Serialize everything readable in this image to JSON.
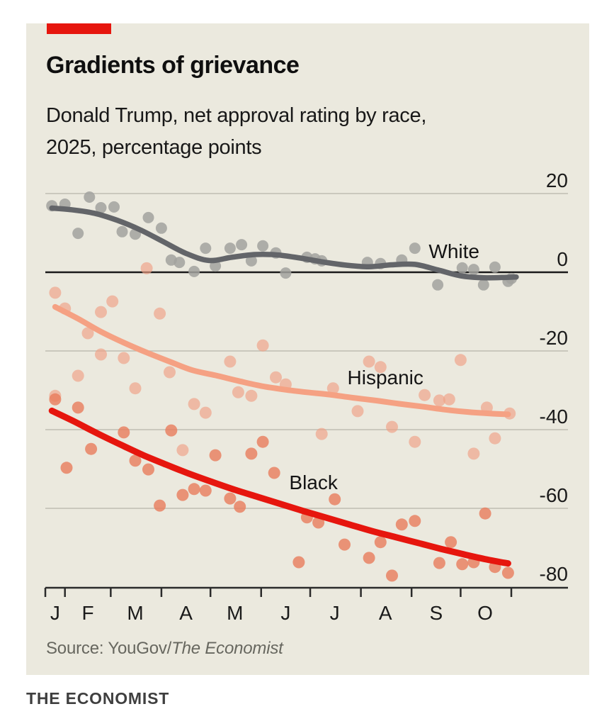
{
  "header": {
    "title": "Gradients of grievance",
    "subtitle_lines": [
      "Donald Trump, net approval rating by race,",
      "2025, percentage points"
    ]
  },
  "source": {
    "prefix": "Source: YouGov/",
    "publication": "The Economist"
  },
  "footer": {
    "brand": "THE ECONOMIST"
  },
  "colors": {
    "page_background": "#ffffff",
    "panel_background": "#ebe9de",
    "brand_red": "#e6160e",
    "gridline": "#c0beb2",
    "zero_line": "#1a1a1a",
    "axis_line": "#2b2b2b",
    "text": "#1a1a1a"
  },
  "chart_data": {
    "type": "scatter",
    "title": "Donald Trump, net approval rating by race, 2025, percentage points",
    "x_unit": "day_of_year_2025",
    "x_range": [
      20,
      305
    ],
    "ylim": [
      -80,
      20
    ],
    "grid": "on",
    "y_axis": {
      "side": "right",
      "ticks": [
        {
          "label": "20",
          "value": 20
        },
        {
          "label": "0",
          "value": 0
        },
        {
          "label": "-20",
          "value": -20
        },
        {
          "label": "-40",
          "value": -40
        },
        {
          "label": "-60",
          "value": -60
        },
        {
          "label": "-80",
          "value": -80
        }
      ],
      "gridline_values": [
        20,
        -20,
        -40,
        -60
      ],
      "zero_line_value": 0,
      "bottom_axis_value": -80
    },
    "x_axis": {
      "tick_days": [
        20,
        32,
        60,
        91,
        121,
        152,
        182,
        213,
        244,
        274,
        305
      ],
      "month_labels": [
        {
          "label": "J",
          "day": 26
        },
        {
          "label": "F",
          "day": 46
        },
        {
          "label": "M",
          "day": 75
        },
        {
          "label": "A",
          "day": 106
        },
        {
          "label": "M",
          "day": 136
        },
        {
          "label": "J",
          "day": 167
        },
        {
          "label": "J",
          "day": 197
        },
        {
          "label": "A",
          "day": 228
        },
        {
          "label": "S",
          "day": 259
        },
        {
          "label": "O",
          "day": 289
        }
      ]
    },
    "series": [
      {
        "name": "White",
        "label": "White",
        "label_pos": {
          "day": 270,
          "value": 5.4
        },
        "line_color": "#636569",
        "dot_color": "#a2a29f",
        "dot_opacity": 0.85,
        "line_width": 7.5,
        "dot_radius": 8,
        "trend": [
          [
            24,
            16.3
          ],
          [
            36,
            15.9
          ],
          [
            50,
            15.0
          ],
          [
            64,
            13.2
          ],
          [
            78,
            10.8
          ],
          [
            92,
            7.8
          ],
          [
            106,
            4.8
          ],
          [
            120,
            3.0
          ],
          [
            134,
            3.8
          ],
          [
            148,
            4.5
          ],
          [
            162,
            4.4
          ],
          [
            176,
            3.6
          ],
          [
            190,
            2.6
          ],
          [
            204,
            1.8
          ],
          [
            218,
            1.4
          ],
          [
            232,
            1.9
          ],
          [
            246,
            2.0
          ],
          [
            260,
            0.6
          ],
          [
            274,
            -0.9
          ],
          [
            288,
            -1.4
          ],
          [
            302,
            -1.3
          ],
          [
            308,
            -1.2
          ]
        ],
        "points": [
          [
            24,
            16.9
          ],
          [
            32,
            17.3
          ],
          [
            40,
            9.9
          ],
          [
            47,
            19.1
          ],
          [
            54,
            16.4
          ],
          [
            62,
            16.6
          ],
          [
            67,
            10.3
          ],
          [
            75,
            9.7
          ],
          [
            83,
            13.9
          ],
          [
            91,
            11.2
          ],
          [
            97,
            3.1
          ],
          [
            102,
            2.5
          ],
          [
            111,
            0.2
          ],
          [
            118,
            6.1
          ],
          [
            124,
            1.6
          ],
          [
            133,
            6.1
          ],
          [
            140,
            7.0
          ],
          [
            146,
            2.9
          ],
          [
            153,
            6.7
          ],
          [
            161,
            4.9
          ],
          [
            167,
            -0.2
          ],
          [
            180,
            3.8
          ],
          [
            185,
            3.4
          ],
          [
            189,
            2.9
          ],
          [
            217,
            2.5
          ],
          [
            225,
            2.2
          ],
          [
            238,
            3.1
          ],
          [
            246,
            6.1
          ],
          [
            260,
            -3.2
          ],
          [
            275,
            1.1
          ],
          [
            282,
            0.7
          ],
          [
            288,
            -3.2
          ],
          [
            295,
            1.3
          ],
          [
            303,
            -2.3
          ],
          [
            305,
            -1.6
          ]
        ]
      },
      {
        "name": "Hispanic",
        "label": "Hispanic",
        "label_pos": {
          "day": 228,
          "value": -26.7
        },
        "line_color": "#f5a183",
        "dot_color": "#f0a084",
        "dot_opacity": 0.65,
        "line_width": 8,
        "dot_radius": 8.5,
        "trend": [
          [
            26,
            -8.8
          ],
          [
            40,
            -11.8
          ],
          [
            54,
            -15.1
          ],
          [
            68,
            -17.9
          ],
          [
            82,
            -20.4
          ],
          [
            96,
            -22.7
          ],
          [
            110,
            -24.9
          ],
          [
            124,
            -26.2
          ],
          [
            138,
            -27.6
          ],
          [
            152,
            -28.9
          ],
          [
            166,
            -29.8
          ],
          [
            180,
            -30.5
          ],
          [
            194,
            -31.1
          ],
          [
            208,
            -31.9
          ],
          [
            222,
            -32.6
          ],
          [
            236,
            -33.4
          ],
          [
            250,
            -34.1
          ],
          [
            264,
            -34.9
          ],
          [
            278,
            -35.5
          ],
          [
            292,
            -35.9
          ],
          [
            303,
            -36.1
          ]
        ],
        "points": [
          [
            26,
            -5.2
          ],
          [
            32,
            -9.2
          ],
          [
            46,
            -15.5
          ],
          [
            54,
            -10.1
          ],
          [
            61,
            -7.4
          ],
          [
            82,
            1.0
          ],
          [
            90,
            -10.5
          ],
          [
            54,
            -20.9
          ],
          [
            68,
            -21.8
          ],
          [
            40,
            -26.3
          ],
          [
            26,
            -31.4
          ],
          [
            75,
            -29.5
          ],
          [
            96,
            -25.4
          ],
          [
            111,
            -33.5
          ],
          [
            118,
            -35.7
          ],
          [
            133,
            -22.7
          ],
          [
            138,
            -30.5
          ],
          [
            146,
            -31.4
          ],
          [
            153,
            -18.6
          ],
          [
            161,
            -26.7
          ],
          [
            167,
            -28.5
          ],
          [
            218,
            -22.7
          ],
          [
            225,
            -24.1
          ],
          [
            196,
            -29.5
          ],
          [
            274,
            -22.3
          ],
          [
            252,
            -31.2
          ],
          [
            261,
            -32.6
          ],
          [
            267,
            -32.3
          ],
          [
            211,
            -35.3
          ],
          [
            290,
            -34.4
          ],
          [
            304,
            -35.9
          ],
          [
            232,
            -39.3
          ],
          [
            189,
            -41.1
          ],
          [
            246,
            -43.1
          ],
          [
            295,
            -42.2
          ],
          [
            282,
            -46.1
          ],
          [
            104,
            -45.2
          ]
        ]
      },
      {
        "name": "Black",
        "label": "Black",
        "label_pos": {
          "day": 184,
          "value": -53.3
        },
        "line_color": "#e6160e",
        "dot_color": "#e87c5b",
        "dot_opacity": 0.8,
        "line_width": 9,
        "dot_radius": 8.5,
        "trend": [
          [
            24,
            -35.2
          ],
          [
            38,
            -38.0
          ],
          [
            52,
            -41.0
          ],
          [
            66,
            -43.8
          ],
          [
            80,
            -46.5
          ],
          [
            94,
            -48.9
          ],
          [
            108,
            -51.2
          ],
          [
            122,
            -53.3
          ],
          [
            136,
            -55.3
          ],
          [
            150,
            -57.1
          ],
          [
            164,
            -58.9
          ],
          [
            178,
            -60.7
          ],
          [
            192,
            -62.4
          ],
          [
            206,
            -64.1
          ],
          [
            220,
            -65.8
          ],
          [
            234,
            -67.3
          ],
          [
            248,
            -68.8
          ],
          [
            262,
            -70.3
          ],
          [
            276,
            -71.7
          ],
          [
            290,
            -73.0
          ],
          [
            303,
            -74.0
          ]
        ],
        "points": [
          [
            26,
            -32.3
          ],
          [
            40,
            -34.4
          ],
          [
            33,
            -49.7
          ],
          [
            48,
            -44.9
          ],
          [
            68,
            -40.7
          ],
          [
            75,
            -47.9
          ],
          [
            83,
            -50.1
          ],
          [
            90,
            -59.3
          ],
          [
            97,
            -40.2
          ],
          [
            104,
            -56.6
          ],
          [
            111,
            -55.1
          ],
          [
            118,
            -55.5
          ],
          [
            124,
            -46.5
          ],
          [
            133,
            -57.5
          ],
          [
            139,
            -59.6
          ],
          [
            146,
            -46.1
          ],
          [
            153,
            -43.1
          ],
          [
            160,
            -51.0
          ],
          [
            175,
            -73.7
          ],
          [
            180,
            -62.3
          ],
          [
            187,
            -63.6
          ],
          [
            197,
            -57.7
          ],
          [
            203,
            -69.2
          ],
          [
            218,
            -72.6
          ],
          [
            225,
            -68.6
          ],
          [
            232,
            -77.1
          ],
          [
            238,
            -64.1
          ],
          [
            246,
            -63.2
          ],
          [
            261,
            -73.9
          ],
          [
            268,
            -68.6
          ],
          [
            275,
            -74.2
          ],
          [
            282,
            -73.7
          ],
          [
            289,
            -61.3
          ],
          [
            295,
            -74.9
          ],
          [
            303,
            -76.4
          ]
        ]
      }
    ],
    "legend_position": "inline-labels"
  }
}
